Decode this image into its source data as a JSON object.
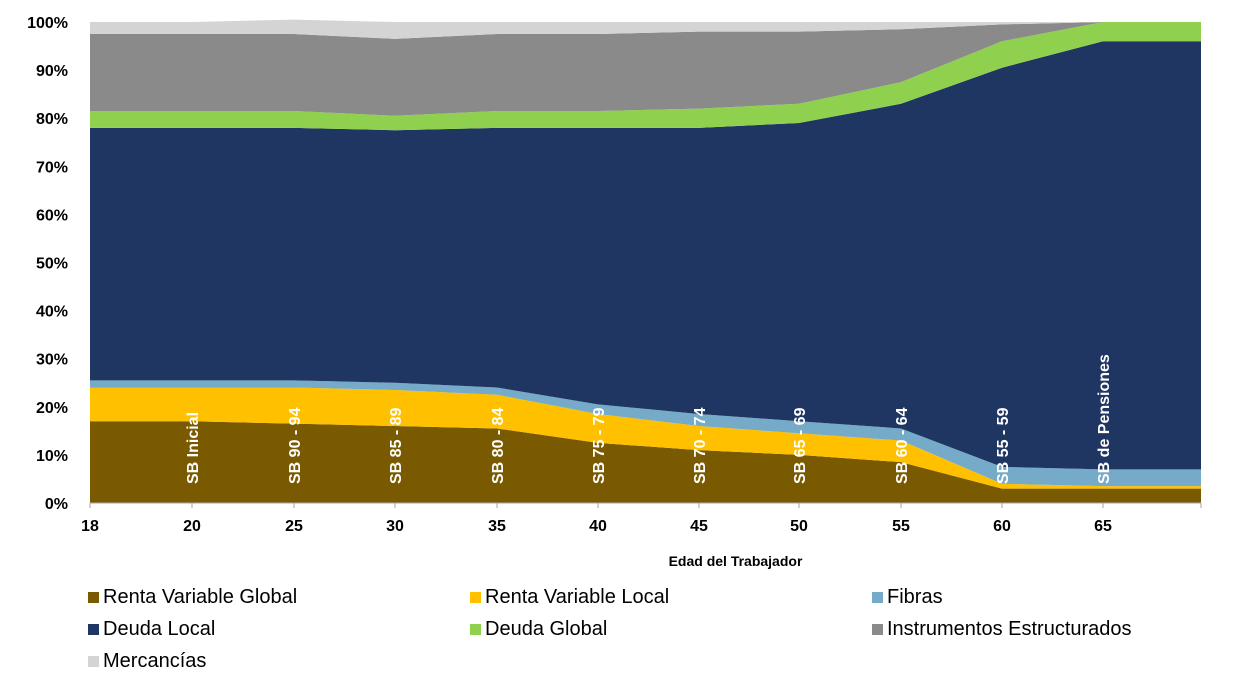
{
  "chart_data": {
    "type": "area",
    "stacked": true,
    "percent": true,
    "xlabel": "Edad del Trabajador",
    "ylabel": "",
    "ylim": [
      0,
      100
    ],
    "x": [
      18,
      20,
      25,
      30,
      35,
      40,
      45,
      50,
      55,
      60,
      65,
      70
    ],
    "x_ticks": [
      "18",
      "20",
      "25",
      "30",
      "35",
      "40",
      "45",
      "50",
      "55",
      "60",
      "65"
    ],
    "y_ticks": [
      "0%",
      "10%",
      "20%",
      "30%",
      "40%",
      "50%",
      "60%",
      "70%",
      "80%",
      "90%",
      "100%"
    ],
    "series": [
      {
        "name": "Renta Variable Global",
        "color": "#7a5a00",
        "values": [
          17,
          17,
          16.5,
          16,
          15.5,
          12.5,
          11,
          10,
          8.5,
          3,
          3,
          3
        ]
      },
      {
        "name": "Renta Variable Local",
        "color": "#ffc000",
        "values": [
          7,
          7,
          7.5,
          7.5,
          7,
          6,
          5,
          4.5,
          4.5,
          1,
          0.5,
          0.5
        ]
      },
      {
        "name": "Fibras",
        "color": "#75aac8",
        "values": [
          1.5,
          1.5,
          1.5,
          1.5,
          1.5,
          2,
          2.5,
          2.5,
          2.5,
          3.5,
          3.5,
          3.5
        ]
      },
      {
        "name": "Deuda Local",
        "color": "#1f3562",
        "values": [
          52.5,
          52.5,
          52.5,
          52.5,
          54,
          57.5,
          59.5,
          62,
          67.5,
          83,
          89,
          89
        ]
      },
      {
        "name": "Deuda Global",
        "color": "#8fd14f",
        "values": [
          3.5,
          3.5,
          3.5,
          3,
          3.5,
          3.5,
          4,
          4,
          4.5,
          5.5,
          4,
          4
        ]
      },
      {
        "name": "Instrumentos Estructurados",
        "color": "#8a8a8a",
        "values": [
          16,
          16,
          16,
          16,
          16,
          16,
          16,
          15,
          11,
          3.5,
          0,
          0
        ]
      },
      {
        "name": "Mercancías",
        "color": "#d4d4d4",
        "values": [
          2.5,
          2.5,
          3,
          3.5,
          2.5,
          2.5,
          2,
          2,
          1.5,
          0.5,
          0,
          0
        ]
      }
    ],
    "band_labels": [
      {
        "text": "SB Inicial",
        "x": 20
      },
      {
        "text": "SB 90 - 94",
        "x": 25
      },
      {
        "text": "SB 85 - 89",
        "x": 30
      },
      {
        "text": "SB  80 - 84",
        "x": 35
      },
      {
        "text": "SB 75 - 79",
        "x": 40
      },
      {
        "text": "SB 70 - 74",
        "x": 45
      },
      {
        "text": "SB 65 - 69",
        "x": 50
      },
      {
        "text": "SB 60 - 64",
        "x": 55
      },
      {
        "text": "SB  55 - 59",
        "x": 60
      },
      {
        "text": "SB de Pensiones",
        "x": 65
      }
    ],
    "legend": [
      {
        "name": "Renta Variable Global",
        "color": "#7a5a00"
      },
      {
        "name": "Renta Variable Local",
        "color": "#ffc000"
      },
      {
        "name": "Fibras",
        "color": "#75aac8"
      },
      {
        "name": "Deuda Local",
        "color": "#1f3562"
      },
      {
        "name": "Deuda Global",
        "color": "#8fd14f"
      },
      {
        "name": "Instrumentos Estructurados",
        "color": "#8a8a8a"
      },
      {
        "name": "Mercancías",
        "color": "#d4d4d4"
      }
    ],
    "legend_position": "bottom"
  }
}
